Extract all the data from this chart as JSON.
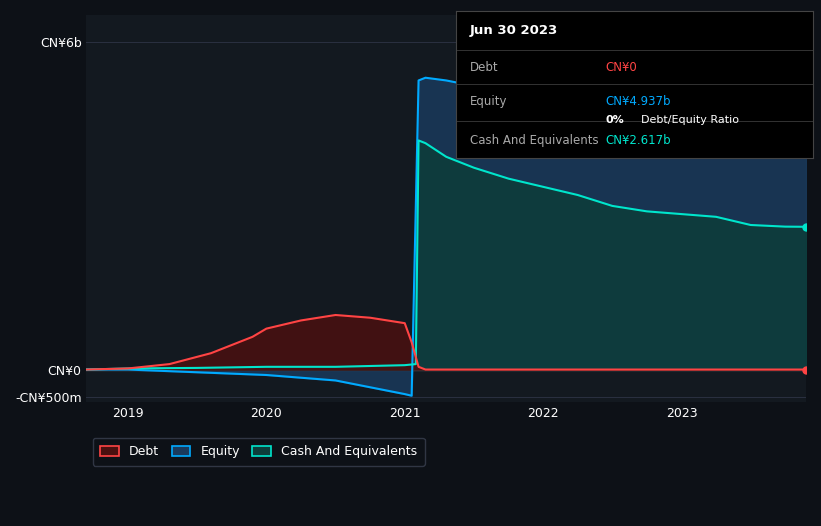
{
  "background_color": "#0d1117",
  "plot_bg_color": "#131920",
  "grid_color": "#2a3040",
  "title_box": {
    "date": "Jun 30 2023",
    "debt_label": "Debt",
    "debt_value": "CN¥0",
    "debt_color": "#ff4444",
    "equity_label": "Equity",
    "equity_value": "CN¥4.937b",
    "equity_color": "#00aaff",
    "ratio_value": "0%",
    "ratio_label": "Debt/Equity Ratio",
    "cash_label": "Cash And Equivalents",
    "cash_value": "CN¥2.617b",
    "cash_color": "#00e5cc"
  },
  "ylim": [
    -600000000.0,
    6500000000.0
  ],
  "yticks": [
    -500000000.0,
    0,
    6000000000.0
  ],
  "ytick_labels": [
    "-CN¥500m",
    "CN¥0",
    "CN¥6b"
  ],
  "xlim": [
    2018.7,
    2023.9
  ],
  "xticks": [
    2019,
    2020,
    2021,
    2022,
    2023
  ],
  "equity_color": "#00aaff",
  "cash_color": "#00e5cc",
  "debt_color": "#ff4444",
  "equity_fill_color": "#1a3a5c",
  "cash_fill_color": "#0d3d3a",
  "debt_fill_color": "#4a1010",
  "legend_bg": "#0d1117",
  "legend_border": "#3a4050"
}
